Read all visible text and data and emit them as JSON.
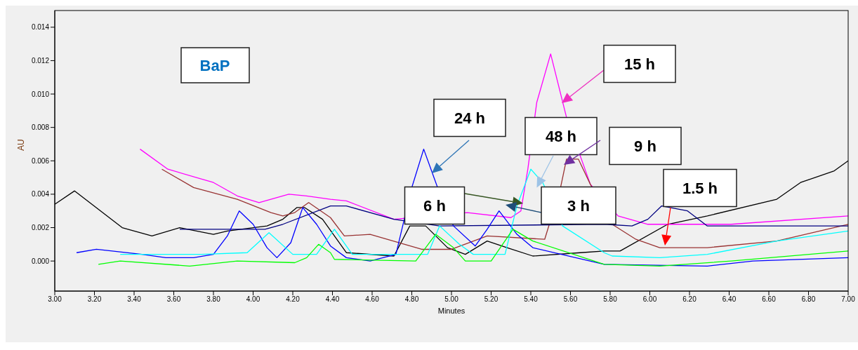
{
  "chart_data": {
    "type": "line",
    "title": "BaP",
    "xlabel": "Minutes",
    "ylabel": "AU",
    "xlim": [
      3,
      7
    ],
    "ylim": [
      -0.0018,
      0.015
    ],
    "xticks": [
      {
        "value": 3,
        "label": "3.00"
      },
      {
        "value": 3.2,
        "label": "3.20"
      },
      {
        "value": 3.4,
        "label": "3.40"
      },
      {
        "value": 3.6,
        "label": "3.60"
      },
      {
        "value": 3.8,
        "label": "3.80"
      },
      {
        "value": 4,
        "label": "4.00"
      },
      {
        "value": 4.2,
        "label": "4.20"
      },
      {
        "value": 4.4,
        "label": "4.40"
      },
      {
        "value": 4.6,
        "label": "4.60"
      },
      {
        "value": 4.8,
        "label": "4.80"
      },
      {
        "value": 5,
        "label": "5.00"
      },
      {
        "value": 5.2,
        "label": "5.20"
      },
      {
        "value": 5.4,
        "label": "5.40"
      },
      {
        "value": 5.6,
        "label": "5.60"
      },
      {
        "value": 5.8,
        "label": "5.80"
      },
      {
        "value": 6,
        "label": "6.00"
      },
      {
        "value": 6.2,
        "label": "6.20"
      },
      {
        "value": 6.4,
        "label": "6.40"
      },
      {
        "value": 6.6,
        "label": "6.60"
      },
      {
        "value": 6.8,
        "label": "6.80"
      },
      {
        "value": 7,
        "label": "7.00"
      }
    ],
    "yticks": [
      {
        "value": 0,
        "label": "0.000"
      },
      {
        "value": 0.002,
        "label": "0.002"
      },
      {
        "value": 0.004,
        "label": "0.004"
      },
      {
        "value": 0.006,
        "label": "0.006"
      },
      {
        "value": 0.008,
        "label": "0.008"
      },
      {
        "value": 0.01,
        "label": "0.010"
      },
      {
        "value": 0.012,
        "label": "0.012"
      },
      {
        "value": 0.014,
        "label": "0.014"
      }
    ],
    "grid": false,
    "legend": false,
    "marker": "none",
    "line_style": "solid",
    "series": [
      {
        "color": "#000000",
        "x": [
          3.0,
          3.1,
          3.34,
          3.49,
          3.63,
          3.8,
          3.87,
          4.07,
          4.15,
          4.22,
          4.26,
          4.35,
          4.47,
          4.71,
          4.79,
          4.87,
          4.98,
          5.07,
          5.18,
          5.28,
          5.41,
          5.65,
          5.77,
          5.85,
          6.09,
          6.29,
          6.64,
          6.76,
          6.93,
          7.0
        ],
        "values": [
          0.0034,
          0.0042,
          0.002,
          0.0015,
          0.002,
          0.0016,
          0.0018,
          0.0021,
          0.0025,
          0.0032,
          0.0032,
          0.0025,
          0.0005,
          0.0003,
          0.0021,
          0.0021,
          0.0008,
          0.0004,
          0.0012,
          0.0008,
          0.0003,
          0.0005,
          0.0006,
          0.0006,
          0.0022,
          0.0027,
          0.0037,
          0.0047,
          0.0054,
          0.006
        ]
      },
      {
        "color": "#ff00ff",
        "x": [
          3.43,
          3.57,
          3.8,
          3.92,
          4.03,
          4.18,
          4.27,
          4.39,
          4.47,
          4.71,
          5.08,
          5.3,
          5.35,
          5.385,
          5.43,
          5.5,
          5.58,
          5.7,
          5.84,
          5.99,
          6.41,
          7.0
        ],
        "values": [
          0.0067,
          0.0055,
          0.0047,
          0.0039,
          0.0035,
          0.004,
          0.0039,
          0.0037,
          0.0036,
          0.0025,
          0.0029,
          0.0026,
          0.003,
          0.0055,
          0.0095,
          0.0124,
          0.0086,
          0.0046,
          0.0027,
          0.0022,
          0.0022,
          0.0027
        ]
      },
      {
        "color": "#993333",
        "x": [
          3.54,
          3.7,
          3.92,
          4.09,
          4.15,
          4.21,
          4.28,
          4.39,
          4.46,
          4.59,
          4.85,
          5.0,
          5.18,
          5.47,
          5.55,
          5.58,
          5.64,
          5.7,
          5.81,
          5.93,
          6.05,
          6.29,
          6.64,
          7.0
        ],
        "values": [
          0.0055,
          0.0044,
          0.0037,
          0.0029,
          0.0027,
          0.0029,
          0.0035,
          0.0026,
          0.0015,
          0.0016,
          0.0007,
          0.0007,
          0.0015,
          0.0013,
          0.0044,
          0.0061,
          0.0061,
          0.0046,
          0.0022,
          0.0013,
          0.0008,
          0.0008,
          0.0012,
          0.0022
        ]
      },
      {
        "color": "#000080",
        "x": [
          3.63,
          4.06,
          4.15,
          4.39,
          4.47,
          4.71,
          4.94,
          5.77,
          5.91,
          5.99,
          6.06,
          6.19,
          6.29,
          7.0
        ],
        "values": [
          0.0019,
          0.0019,
          0.0022,
          0.0033,
          0.0033,
          0.0025,
          0.0021,
          0.0022,
          0.0021,
          0.0025,
          0.0033,
          0.003,
          0.0021,
          0.0021
        ]
      },
      {
        "color": "#0000ff",
        "x": [
          3.11,
          3.21,
          3.44,
          3.56,
          3.7,
          3.8,
          3.87,
          3.93,
          4.0,
          4.07,
          4.12,
          4.19,
          4.25,
          4.32,
          4.39,
          4.47,
          4.59,
          4.72,
          4.8,
          4.86,
          4.93,
          5.01,
          5.12,
          5.18,
          5.24,
          5.33,
          5.41,
          5.77,
          6.29,
          6.52,
          7.0
        ],
        "values": [
          0.0005,
          0.0007,
          0.0004,
          0.0002,
          0.0002,
          0.0004,
          0.0015,
          0.003,
          0.0022,
          0.0008,
          0.0002,
          0.0011,
          0.0032,
          0.0022,
          0.0009,
          0.0002,
          0.0,
          0.0004,
          0.0044,
          0.0067,
          0.0044,
          0.0021,
          0.0009,
          0.0019,
          0.003,
          0.0016,
          0.0008,
          -0.0002,
          -0.0003,
          0.0,
          0.0002
        ]
      },
      {
        "color": "#00ffff",
        "x": [
          3.33,
          3.74,
          3.97,
          4.08,
          4.2,
          4.32,
          4.41,
          4.5,
          4.88,
          4.94,
          5.04,
          5.11,
          5.27,
          5.33,
          5.4,
          5.46,
          5.56,
          5.77,
          5.81,
          6.05,
          6.29,
          6.64,
          7.0
        ],
        "values": [
          0.0004,
          0.0004,
          0.0005,
          0.0017,
          0.0004,
          0.0004,
          0.0019,
          0.0004,
          0.0004,
          0.0021,
          0.001,
          0.0004,
          0.0004,
          0.0033,
          0.0055,
          0.0047,
          0.0021,
          0.0005,
          0.0003,
          0.0002,
          0.0004,
          0.0012,
          0.0018
        ]
      },
      {
        "color": "#00ff00",
        "x": [
          3.22,
          3.33,
          3.68,
          3.92,
          4.21,
          4.27,
          4.33,
          4.39,
          4.41,
          4.82,
          4.92,
          5.01,
          5.07,
          5.2,
          5.31,
          5.41,
          5.77,
          6.05,
          6.41,
          7.0
        ],
        "values": [
          -0.0002,
          0.0,
          -0.0003,
          0.0,
          -0.0001,
          0.0002,
          0.001,
          0.0005,
          0.0001,
          0.0,
          0.0016,
          0.0008,
          0.0,
          0.0,
          0.0019,
          0.0012,
          -0.0002,
          -0.0003,
          0.0,
          0.0006
        ]
      }
    ],
    "annotations": [
      "24 h",
      "15 h",
      {
        "text": "48 h",
        "x": 5.43,
        "y": 0.0044
      },
      "9 h",
      "6 h",
      "3 h",
      "1.5 h"
    ]
  }
}
